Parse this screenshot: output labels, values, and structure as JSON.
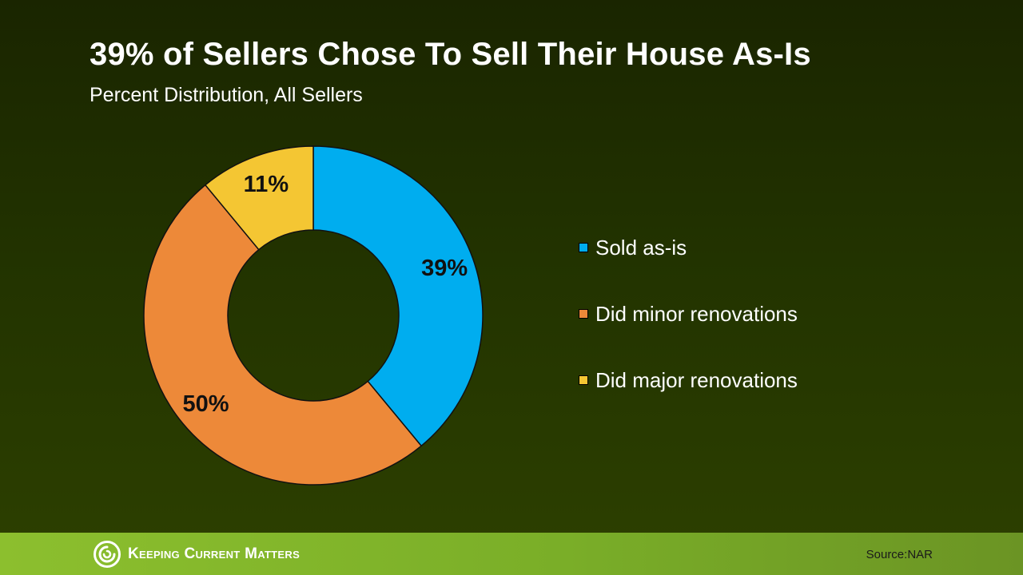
{
  "header": {
    "title": "39% of Sellers Chose To Sell Their House As-Is",
    "subtitle": "Percent Distribution, All Sellers"
  },
  "chart_data": {
    "type": "pie",
    "title": "39% of Sellers Chose To Sell Their House As-Is",
    "subtitle": "Percent Distribution, All Sellers",
    "categories": [
      "Sold as-is",
      "Did minor renovations",
      "Did major renovations"
    ],
    "values": [
      39,
      50,
      11
    ],
    "labels": [
      "39%",
      "50%",
      "11%"
    ],
    "colors": [
      "#00adef",
      "#ed8939",
      "#f4c633"
    ],
    "donut": true,
    "legend_position": "right"
  },
  "footer": {
    "brand": "Keeping Current Matters",
    "source": "Source:NAR"
  }
}
